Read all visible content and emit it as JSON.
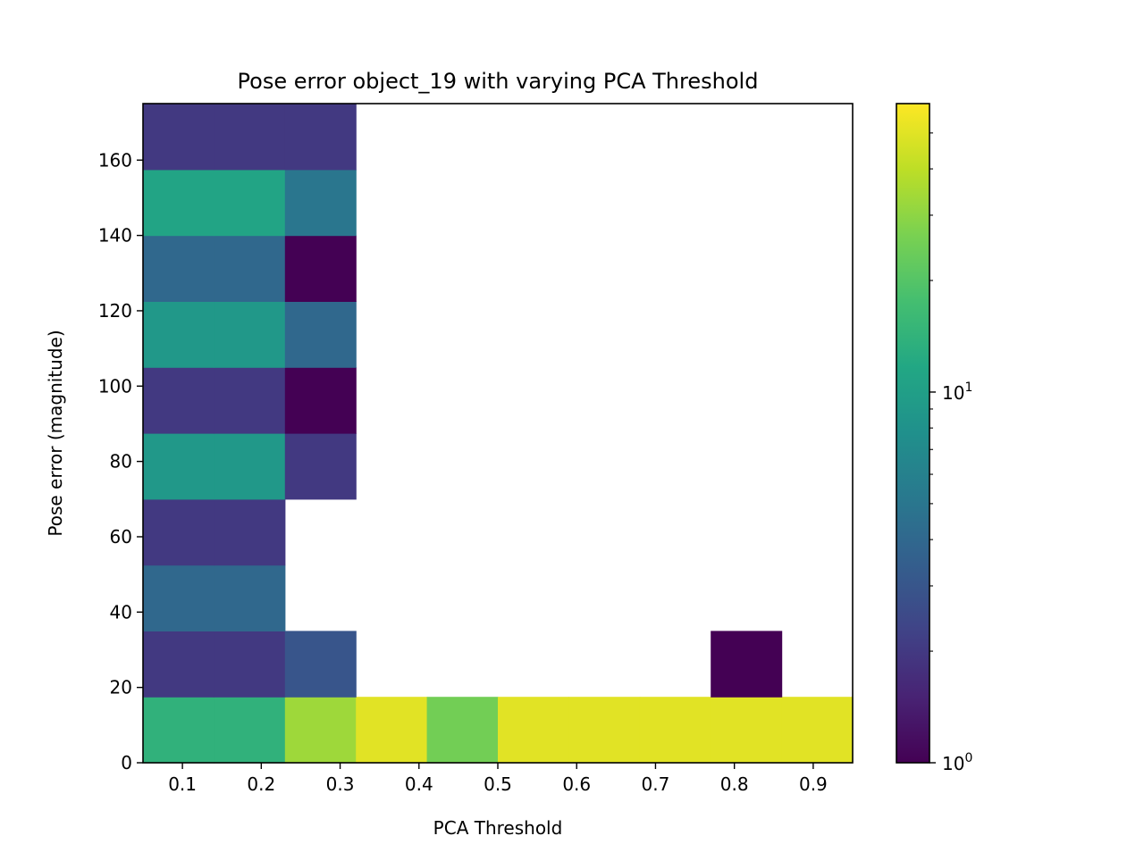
{
  "chart_data": {
    "type": "heatmap",
    "title": "Pose error object_19 with varying PCA Threshold",
    "xlabel": "PCA Threshold",
    "ylabel": "Pose error (magnitude)",
    "xlim": [
      0.05,
      0.95
    ],
    "ylim": [
      0,
      175
    ],
    "x_ticks": [
      "0.1",
      "0.2",
      "0.3",
      "0.4",
      "0.5",
      "0.6",
      "0.7",
      "0.8",
      "0.9"
    ],
    "x_tick_values": [
      0.1,
      0.2,
      0.3,
      0.4,
      0.5,
      0.6,
      0.7,
      0.8,
      0.9
    ],
    "y_ticks": [
      "0",
      "20",
      "40",
      "60",
      "80",
      "100",
      "120",
      "140",
      "160"
    ],
    "y_tick_values": [
      0,
      20,
      40,
      60,
      80,
      100,
      120,
      140,
      160
    ],
    "x_bin_edges": [
      0.05,
      0.14,
      0.23,
      0.32,
      0.41,
      0.5,
      0.59,
      0.68,
      0.77,
      0.86,
      0.95
    ],
    "y_bin_edges": [
      0,
      17.5,
      35,
      52.5,
      70,
      87.5,
      105,
      122.5,
      140,
      157.5,
      175
    ],
    "counts": [
      [
        14,
        14,
        33,
        50,
        25,
        50,
        50,
        50,
        50,
        50
      ],
      [
        2,
        2,
        3,
        0,
        0,
        0,
        0,
        0,
        1,
        0
      ],
      [
        4,
        4,
        0,
        0,
        0,
        0,
        0,
        0,
        0,
        0
      ],
      [
        2,
        2,
        0,
        0,
        0,
        0,
        0,
        0,
        0,
        0
      ],
      [
        9,
        9,
        2,
        0,
        0,
        0,
        0,
        0,
        0,
        0
      ],
      [
        2,
        2,
        1,
        0,
        0,
        0,
        0,
        0,
        0,
        0
      ],
      [
        9,
        9,
        4,
        0,
        0,
        0,
        0,
        0,
        0,
        0
      ],
      [
        4,
        4,
        1,
        0,
        0,
        0,
        0,
        0,
        0,
        0
      ],
      [
        11,
        11,
        5,
        0,
        0,
        0,
        0,
        0,
        0,
        0
      ],
      [
        2,
        2,
        2,
        0,
        0,
        0,
        0,
        0,
        0,
        0
      ]
    ],
    "colorbar": {
      "scale": "log",
      "colormap": "viridis",
      "range": [
        1,
        60
      ],
      "tick_values": [
        1,
        10
      ],
      "tick_labels": [
        {
          "base": "10",
          "exp": "0"
        },
        {
          "base": "10",
          "exp": "1"
        }
      ]
    },
    "grid": false
  }
}
